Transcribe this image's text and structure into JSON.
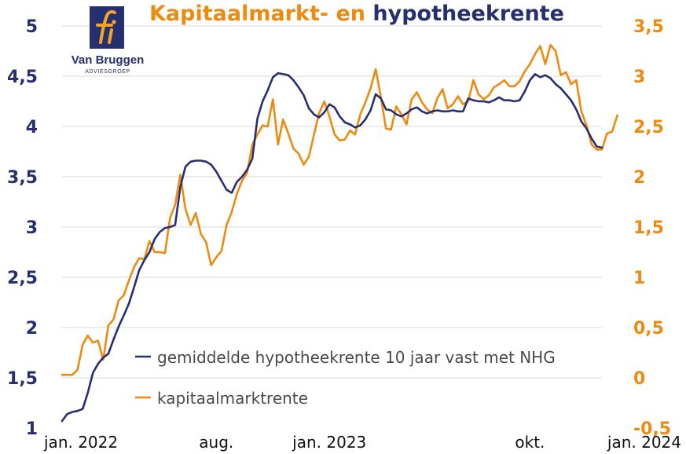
{
  "logo": {
    "name": "Van Bruggen",
    "subtitle": "ADVIESGROEP",
    "monogram": "fi"
  },
  "colors": {
    "hypotheek": "#263070",
    "kapitaal": "#ee8a10",
    "grid": "#d9d9d9",
    "logo_orange": "#f5a623"
  },
  "chart_data": {
    "type": "line",
    "title_part1": "Kapitaalmarkt- en",
    "title_part2": "hypotheekrente",
    "x_tick_labels": [
      "jan. 2022",
      "aug.",
      "jan. 2023",
      "okt.",
      "jan. 2024"
    ],
    "x_tick_weeks": [
      0,
      30,
      52,
      91,
      104
    ],
    "left_axis": {
      "ylim": [
        1,
        5
      ],
      "ticks": [
        "1",
        "1,5",
        "2",
        "2,5",
        "3",
        "3,5",
        "4",
        "4,5",
        "5"
      ]
    },
    "right_axis": {
      "ylim": [
        -0.5,
        3.5
      ],
      "ticks": [
        "-0,5",
        "0",
        "0,5",
        "1",
        "1,5",
        "2",
        "2,5",
        "3",
        "3,5"
      ]
    },
    "grid": true,
    "legend_position": "bottom-center",
    "series": [
      {
        "name": "gemiddelde hypotheekrente 10 jaar vast met NHG",
        "axis": "left",
        "values": [
          1.07,
          1.14,
          1.16,
          1.17,
          1.19,
          1.35,
          1.55,
          1.64,
          1.7,
          1.74,
          1.88,
          2.01,
          2.12,
          2.24,
          2.4,
          2.57,
          2.67,
          2.75,
          2.88,
          2.95,
          2.99,
          3.0,
          3.02,
          3.4,
          3.6,
          3.65,
          3.66,
          3.66,
          3.65,
          3.62,
          3.55,
          3.46,
          3.37,
          3.34,
          3.45,
          3.5,
          3.57,
          3.68,
          4.08,
          4.25,
          4.36,
          4.49,
          4.53,
          4.52,
          4.51,
          4.46,
          4.39,
          4.31,
          4.18,
          4.12,
          4.09,
          4.14,
          4.22,
          4.19,
          4.1,
          4.04,
          4.02,
          3.99,
          4.01,
          4.07,
          4.16,
          4.32,
          4.28,
          4.17,
          4.16,
          4.12,
          4.1,
          4.13,
          4.17,
          4.19,
          4.15,
          4.13,
          4.15,
          4.16,
          4.15,
          4.15,
          4.16,
          4.15,
          4.15,
          4.28,
          4.26,
          4.25,
          4.25,
          4.24,
          4.26,
          4.29,
          4.26,
          4.26,
          4.25,
          4.26,
          4.35,
          4.46,
          4.52,
          4.49,
          4.51,
          4.48,
          4.42,
          4.38,
          4.32,
          4.26,
          4.17,
          4.05,
          3.98,
          3.88,
          3.8,
          3.79
        ]
      },
      {
        "name": "kapitaalmarktrente",
        "axis": "right",
        "values": [
          0.03,
          0.03,
          0.03,
          0.08,
          0.33,
          0.42,
          0.35,
          0.37,
          0.18,
          0.52,
          0.58,
          0.77,
          0.82,
          0.97,
          1.1,
          1.19,
          1.18,
          1.36,
          1.25,
          1.25,
          1.24,
          1.59,
          1.72,
          2.02,
          1.68,
          1.52,
          1.64,
          1.43,
          1.35,
          1.12,
          1.2,
          1.26,
          1.52,
          1.65,
          1.83,
          1.96,
          2.04,
          2.32,
          2.42,
          2.51,
          2.5,
          2.77,
          2.32,
          2.57,
          2.43,
          2.28,
          2.23,
          2.12,
          2.2,
          2.42,
          2.63,
          2.75,
          2.6,
          2.42,
          2.36,
          2.37,
          2.46,
          2.42,
          2.62,
          2.74,
          2.88,
          3.07,
          2.79,
          2.48,
          2.47,
          2.7,
          2.62,
          2.52,
          2.77,
          2.84,
          2.74,
          2.67,
          2.63,
          2.78,
          2.87,
          2.68,
          2.72,
          2.8,
          2.72,
          2.75,
          2.96,
          2.82,
          2.77,
          2.81,
          2.89,
          2.92,
          2.96,
          2.9,
          2.9,
          2.95,
          3.05,
          3.12,
          3.22,
          3.3,
          3.12,
          3.31,
          3.25,
          3.01,
          3.04,
          2.92,
          2.96,
          2.65,
          2.51,
          2.32,
          2.27,
          2.27,
          2.43,
          2.45,
          2.61
        ]
      }
    ]
  }
}
